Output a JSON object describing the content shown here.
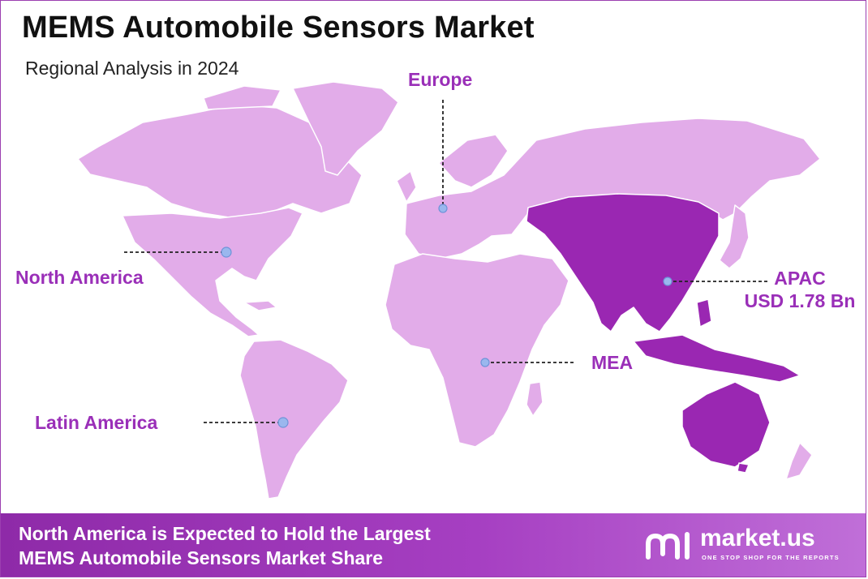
{
  "header": {
    "title": "MEMS Automobile Sensors Market",
    "subtitle": "Regional Analysis in 2024"
  },
  "regions": {
    "north_america": {
      "label": "North America"
    },
    "europe": {
      "label": "Europe"
    },
    "apac": {
      "label": "APAC",
      "value": "USD 1.78 Bn",
      "highlighted": true
    },
    "mea": {
      "label": "MEA"
    },
    "latin_america": {
      "label": "Latin America"
    }
  },
  "footer": {
    "line1": "North America is Expected to Hold the Largest",
    "line2": "MEMS Automobile Sensors Market Share"
  },
  "brand": {
    "name": "market.us",
    "tagline": "ONE STOP SHOP FOR THE REPORTS"
  },
  "colors": {
    "land": "#e2ace9",
    "land_highlight": "#9a27b2",
    "label": "#9a2fb8",
    "marker": "#9ab7ee",
    "footer": "#a23bbf"
  }
}
